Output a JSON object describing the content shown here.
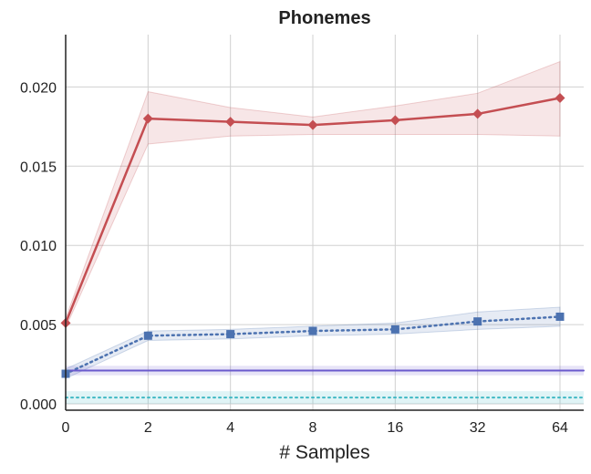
{
  "chart_data": {
    "type": "line",
    "title": "Phonemes",
    "xlabel": "# Samples",
    "ylabel": "",
    "categories": [
      "0",
      "2",
      "4",
      "8",
      "16",
      "32",
      "64"
    ],
    "yticks": [
      "0.000",
      "0.005",
      "0.010",
      "0.015",
      "0.020"
    ],
    "ylim": [
      -0.0004,
      0.0233
    ],
    "grid": true,
    "series": [
      {
        "name": "red-diamond",
        "color": "#c44e52",
        "marker": "diamond",
        "style": "solid",
        "values": [
          0.0051,
          0.018,
          0.0178,
          0.0176,
          0.0179,
          0.0183,
          0.0193
        ],
        "band_low": [
          0.0048,
          0.0164,
          0.0169,
          0.017,
          0.017,
          0.017,
          0.0169
        ],
        "band_high": [
          0.0054,
          0.0197,
          0.0187,
          0.0181,
          0.0188,
          0.0196,
          0.0216
        ]
      },
      {
        "name": "blue-square",
        "color": "#4c72b0",
        "marker": "square",
        "style": "dotted",
        "values": [
          0.0019,
          0.0043,
          0.0044,
          0.0046,
          0.0047,
          0.0052,
          0.0055
        ],
        "band_low": [
          0.0016,
          0.004,
          0.0041,
          0.0043,
          0.0044,
          0.0047,
          0.0049
        ],
        "band_high": [
          0.0022,
          0.0046,
          0.0047,
          0.0049,
          0.0051,
          0.0058,
          0.0061
        ]
      },
      {
        "name": "purple-baseline",
        "color": "#6a5acd",
        "style": "solid",
        "constant": 0.0021,
        "band_low": 0.0018,
        "band_high": 0.0024
      },
      {
        "name": "cyan-baseline",
        "color": "#3fb8c4",
        "style": "dotted",
        "constant": 0.0004,
        "band_low": 0.0,
        "band_high": 0.0008
      }
    ]
  }
}
